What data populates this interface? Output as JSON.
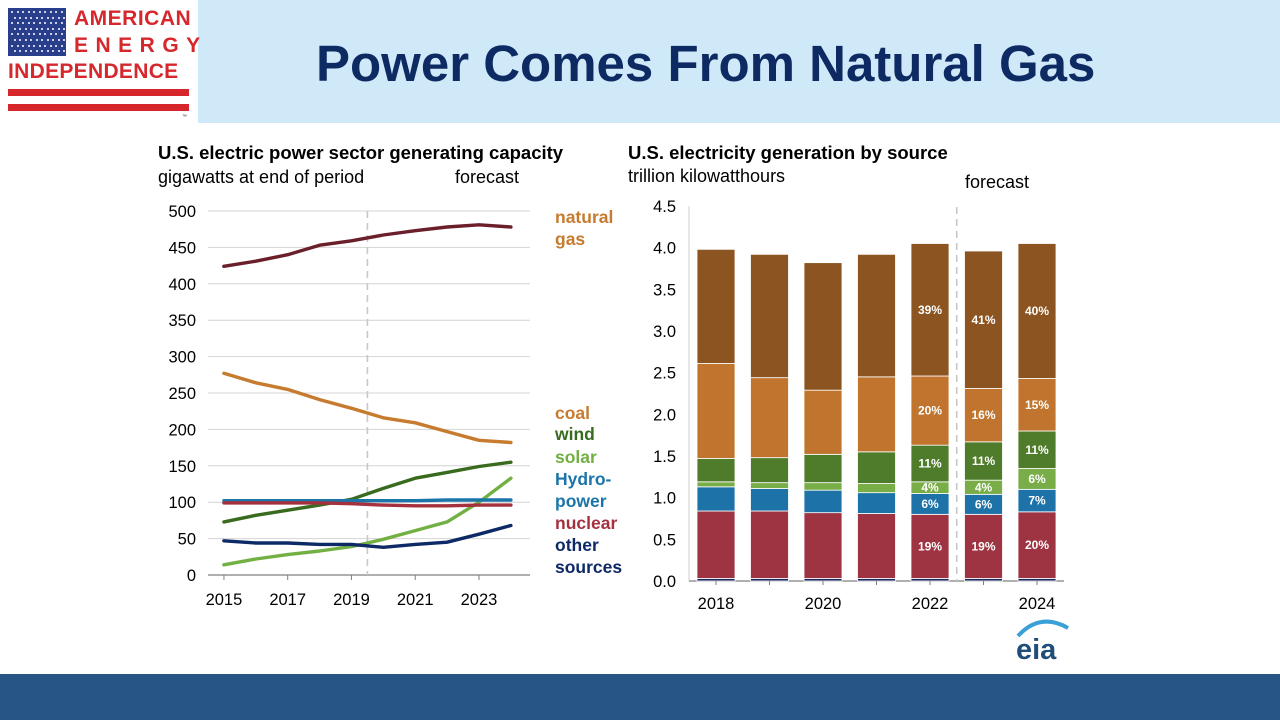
{
  "header": {
    "title": "Power Comes From Natural Gas",
    "logo": {
      "line1": "AMERICAN",
      "line2": "ENERGY",
      "line3": "INDEPENDENCE",
      "tm": "™"
    }
  },
  "colors": {
    "header_bg": "#cfe9f9",
    "title": "#0e2a63",
    "footer": "#275585",
    "natural_gas_line": "#6b1f2a",
    "coal_line": "#c67b2e",
    "wind": "#386b1e",
    "solar": "#72b043",
    "hydro": "#1b75a8",
    "nuclear": "#a5303e",
    "other": "#0d2a66",
    "bar_gas": "#8b5420",
    "bar_coal": "#c0742d",
    "bar_wind": "#4f7c2a",
    "bar_solar": "#78ad48",
    "bar_hydro": "#1d72a8",
    "bar_nuclear": "#9e3442",
    "bar_other": "#1a2a5e"
  },
  "chart_data": [
    {
      "type": "line",
      "title": "U.S. electric power sector generating capacity",
      "subtitle": "gigawatts at end of period",
      "forecast_label": "forecast",
      "forecast_start": 2019.5,
      "x": [
        2015,
        2016,
        2017,
        2018,
        2019,
        2020,
        2021,
        2022,
        2023,
        2024
      ],
      "xlim": [
        2014.5,
        2024.6
      ],
      "x_ticks": [
        "2015",
        "2017",
        "2019",
        "2021",
        "2023"
      ],
      "ylim": [
        0,
        500
      ],
      "y_ticks": [
        "0",
        "50",
        "100",
        "150",
        "200",
        "250",
        "300",
        "350",
        "400",
        "450",
        "500"
      ],
      "grid": true,
      "series": [
        {
          "key": "natural_gas",
          "values": [
            424,
            431,
            440,
            453,
            459,
            467,
            473,
            478,
            481,
            478
          ]
        },
        {
          "key": "coal",
          "values": [
            277,
            264,
            255,
            241,
            229,
            216,
            209,
            197,
            185,
            182
          ]
        },
        {
          "key": "wind",
          "values": [
            73,
            82,
            89,
            96,
            104,
            119,
            133,
            141,
            149,
            155
          ]
        },
        {
          "key": "solar",
          "values": [
            14,
            22,
            28,
            33,
            39,
            49,
            61,
            73,
            100,
            133
          ]
        },
        {
          "key": "hydro",
          "values": [
            102,
            102,
            102,
            102,
            102,
            102,
            102,
            103,
            103,
            103
          ]
        },
        {
          "key": "nuclear",
          "values": [
            99,
            99,
            99,
            99,
            98,
            96,
            95,
            95,
            96,
            96
          ]
        },
        {
          "key": "other",
          "values": [
            47,
            44,
            44,
            42,
            42,
            38,
            42,
            45,
            56,
            68
          ]
        }
      ],
      "legend": {
        "natural_gas": [
          "natural",
          "gas"
        ],
        "coal": [
          "coal"
        ],
        "wind": [
          "wind"
        ],
        "solar": [
          "solar"
        ],
        "hydro": [
          "Hydro-",
          "power"
        ],
        "nuclear": [
          "nuclear"
        ],
        "other": [
          "other",
          "sources"
        ]
      }
    },
    {
      "type": "bar",
      "stacked": true,
      "title": "U.S. electricity generation by source",
      "subtitle": "trillion kilowatthours",
      "forecast_label": "forecast",
      "categories": [
        "2018",
        "2019",
        "2020",
        "2021",
        "2022",
        "2023",
        "2024"
      ],
      "x_tick_labels": [
        "2018",
        "",
        "2020",
        "",
        "2022",
        "",
        "2024"
      ],
      "forecast_after_index": 4,
      "ylim": [
        0,
        4.5
      ],
      "y_ticks": [
        "0.0",
        "0.5",
        "1.0",
        "1.5",
        "2.0",
        "2.5",
        "3.0",
        "3.5",
        "4.0",
        "4.5"
      ],
      "grid": false,
      "series": [
        {
          "key": "other",
          "values": [
            0.03,
            0.03,
            0.03,
            0.03,
            0.03,
            0.03,
            0.03
          ]
        },
        {
          "key": "nuclear",
          "values": [
            0.81,
            0.81,
            0.79,
            0.78,
            0.77,
            0.77,
            0.8
          ]
        },
        {
          "key": "hydro",
          "values": [
            0.29,
            0.27,
            0.27,
            0.25,
            0.25,
            0.24,
            0.27
          ]
        },
        {
          "key": "solar",
          "values": [
            0.06,
            0.07,
            0.09,
            0.11,
            0.14,
            0.17,
            0.25
          ]
        },
        {
          "key": "wind",
          "values": [
            0.28,
            0.3,
            0.34,
            0.38,
            0.44,
            0.46,
            0.45
          ]
        },
        {
          "key": "coal",
          "values": [
            1.14,
            0.96,
            0.77,
            0.9,
            0.83,
            0.64,
            0.63
          ]
        },
        {
          "key": "natural_gas",
          "values": [
            1.37,
            1.48,
            1.53,
            1.47,
            1.59,
            1.65,
            1.62
          ]
        }
      ],
      "percent_labels": [
        {},
        {},
        {},
        {},
        {
          "natural_gas": "39%",
          "coal": "20%",
          "wind": "11%",
          "solar": "4%",
          "hydro": "6%",
          "nuclear": "19%"
        },
        {
          "natural_gas": "41%",
          "coal": "16%",
          "wind": "11%",
          "solar": "4%",
          "hydro": "6%",
          "nuclear": "19%"
        },
        {
          "natural_gas": "40%",
          "coal": "15%",
          "wind": "11%",
          "solar": "6%",
          "hydro": "7%",
          "nuclear": "20%"
        }
      ]
    }
  ],
  "source_logo": "eia"
}
